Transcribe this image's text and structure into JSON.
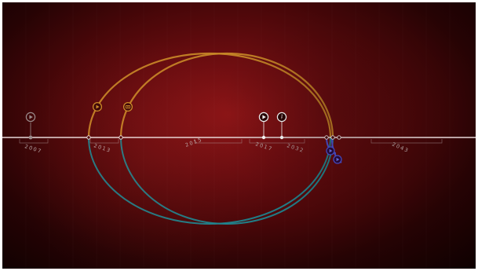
{
  "timeline": {
    "year_labels": [
      "2007",
      "2013",
      "2015",
      "2017",
      "2032",
      "2043"
    ]
  },
  "colors": {
    "background": "#6b0d10",
    "axis_line": "#e8dada",
    "gold_arc": "#c98a28",
    "teal_arc": "#1c8a93",
    "blue_arc": "#4a4fd0",
    "marker_white": "#ffffff",
    "marker_gray": "#9a8a8a"
  },
  "icons": {
    "play": "play-icon",
    "camera": "camera-icon",
    "info": "info-icon"
  }
}
